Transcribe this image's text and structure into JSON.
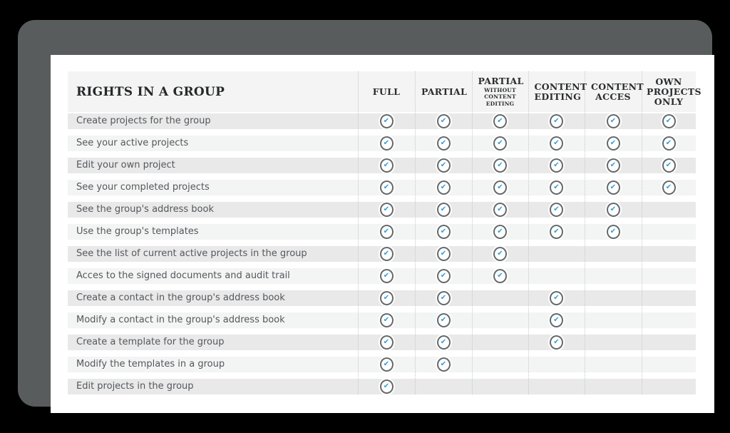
{
  "window": {
    "background_color": "#000000",
    "frame_color": "#585c5c",
    "card_color": "#ffffff"
  },
  "table": {
    "title": "RIGHTS IN A GROUP",
    "accent_check_color": "#2d9fd8",
    "check_icon": "check-circle-icon",
    "columns": [
      {
        "lines": [
          "FULL"
        ]
      },
      {
        "lines": [
          "PARTIAL"
        ]
      },
      {
        "lines": [
          "PARTIAL"
        ],
        "sub_lines": [
          "WITHOUT",
          "CONTENT EDITING"
        ]
      },
      {
        "lines": [
          "CONTENT",
          "EDITING"
        ]
      },
      {
        "lines": [
          "CONTENT",
          "ACCES"
        ]
      },
      {
        "lines": [
          "OWN",
          "PROJECTS",
          "ONLY"
        ]
      }
    ],
    "rows": [
      {
        "label": "Create projects for the group",
        "checks": [
          1,
          1,
          1,
          1,
          1,
          1
        ]
      },
      {
        "label": "See your active projects",
        "checks": [
          1,
          1,
          1,
          1,
          1,
          1
        ]
      },
      {
        "label": "Edit your own project",
        "checks": [
          1,
          1,
          1,
          1,
          1,
          1
        ]
      },
      {
        "label": "See your completed projects",
        "checks": [
          1,
          1,
          1,
          1,
          1,
          1
        ]
      },
      {
        "label": "See the group's address book",
        "checks": [
          1,
          1,
          1,
          1,
          1,
          0
        ]
      },
      {
        "label": "Use the group's templates",
        "checks": [
          1,
          1,
          1,
          1,
          1,
          0
        ]
      },
      {
        "label": "See the list of current active projects in the group",
        "checks": [
          1,
          1,
          1,
          0,
          0,
          0
        ]
      },
      {
        "label": "Acces to the signed documents and audit trail",
        "checks": [
          1,
          1,
          1,
          0,
          0,
          0
        ]
      },
      {
        "label": "Create a contact in the group's address book",
        "checks": [
          1,
          1,
          0,
          1,
          0,
          0
        ]
      },
      {
        "label": "Modify a contact in the group's address book",
        "checks": [
          1,
          1,
          0,
          1,
          0,
          0
        ]
      },
      {
        "label": "Create a template for the group",
        "checks": [
          1,
          1,
          0,
          1,
          0,
          0
        ]
      },
      {
        "label": "Modify the templates in a group",
        "checks": [
          1,
          1,
          0,
          0,
          0,
          0
        ]
      },
      {
        "label": "Edit projects in the group",
        "checks": [
          1,
          0,
          0,
          0,
          0,
          0
        ]
      }
    ]
  }
}
